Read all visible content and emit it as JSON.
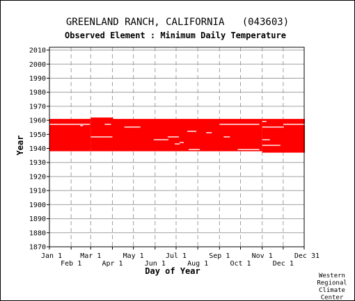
{
  "chart_data": {
    "type": "heatmap",
    "title": "GREENLAND RANCH, CALIFORNIA   (043603)",
    "subtitle": "Observed Element : Minimum Daily Temperature",
    "xlabel": "Day of Year",
    "ylabel": "Year",
    "credit": [
      "Western",
      "Regional",
      "Climate",
      "Center"
    ],
    "xlim": [
      1,
      365
    ],
    "ylim": [
      1870,
      2012
    ],
    "yticks": [
      2010,
      2000,
      1990,
      1980,
      1970,
      1960,
      1950,
      1940,
      1930,
      1920,
      1910,
      1900,
      1890,
      1880,
      1870
    ],
    "xticks_top_row": [
      {
        "label": "Jan 1",
        "day": 1
      },
      {
        "label": "Mar 1",
        "day": 60
      },
      {
        "label": "May 1",
        "day": 121
      },
      {
        "label": "Jul 1",
        "day": 182
      },
      {
        "label": "Sep 1",
        "day": 244
      },
      {
        "label": "Nov 1",
        "day": 305
      },
      {
        "label": "Dec 31",
        "day": 365
      }
    ],
    "xticks_bottom_row": [
      {
        "label": "Feb 1",
        "day": 32
      },
      {
        "label": "Apr 1",
        "day": 91
      },
      {
        "label": "Jun 1",
        "day": 152
      },
      {
        "label": "Aug 1",
        "day": 213
      },
      {
        "label": "Oct 1",
        "day": 274
      },
      {
        "label": "Dec 1",
        "day": 335
      }
    ],
    "grid": true,
    "series": [
      {
        "color": "#ff0000",
        "records": [
          {
            "year_start": 1938,
            "year_end": 1960,
            "day_start": 1,
            "day_end": 59
          },
          {
            "year_start": 1938,
            "year_end": 1961,
            "day_start": 60,
            "day_end": 91
          },
          {
            "year_start": 1938,
            "year_end": 1960,
            "day_start": 92,
            "day_end": 304
          },
          {
            "year_start": 1937,
            "year_end": 1960,
            "day_start": 305,
            "day_end": 365
          }
        ],
        "gaps": [
          {
            "year": 1957,
            "day_start": 1,
            "day_end": 58
          },
          {
            "year": 1957,
            "day_start": 80,
            "day_end": 88
          },
          {
            "year": 1955,
            "day_start": 108,
            "day_end": 130
          },
          {
            "year": 1952,
            "day_start": 198,
            "day_end": 210
          },
          {
            "year": 1951,
            "day_start": 225,
            "day_end": 232
          },
          {
            "year": 1948,
            "day_start": 60,
            "day_end": 90
          },
          {
            "year": 1948,
            "day_start": 170,
            "day_end": 185
          },
          {
            "year": 1948,
            "day_start": 250,
            "day_end": 258
          },
          {
            "year": 1946,
            "day_start": 150,
            "day_end": 170
          },
          {
            "year": 1946,
            "day_start": 305,
            "day_end": 315
          },
          {
            "year": 1944,
            "day_start": 187,
            "day_end": 192
          },
          {
            "year": 1943,
            "day_start": 180,
            "day_end": 186
          },
          {
            "year": 1942,
            "day_start": 305,
            "day_end": 330
          },
          {
            "year": 1939,
            "day_start": 200,
            "day_end": 215
          },
          {
            "year": 1939,
            "day_start": 270,
            "day_end": 300
          },
          {
            "year": 1957,
            "day_start": 244,
            "day_end": 300
          },
          {
            "year": 1957,
            "day_start": 335,
            "day_end": 365
          },
          {
            "year": 1955,
            "day_start": 305,
            "day_end": 335
          },
          {
            "year": 1956,
            "day_start": 45,
            "day_end": 48
          },
          {
            "year": 1959,
            "day_start": 305,
            "day_end": 310
          }
        ]
      }
    ]
  }
}
